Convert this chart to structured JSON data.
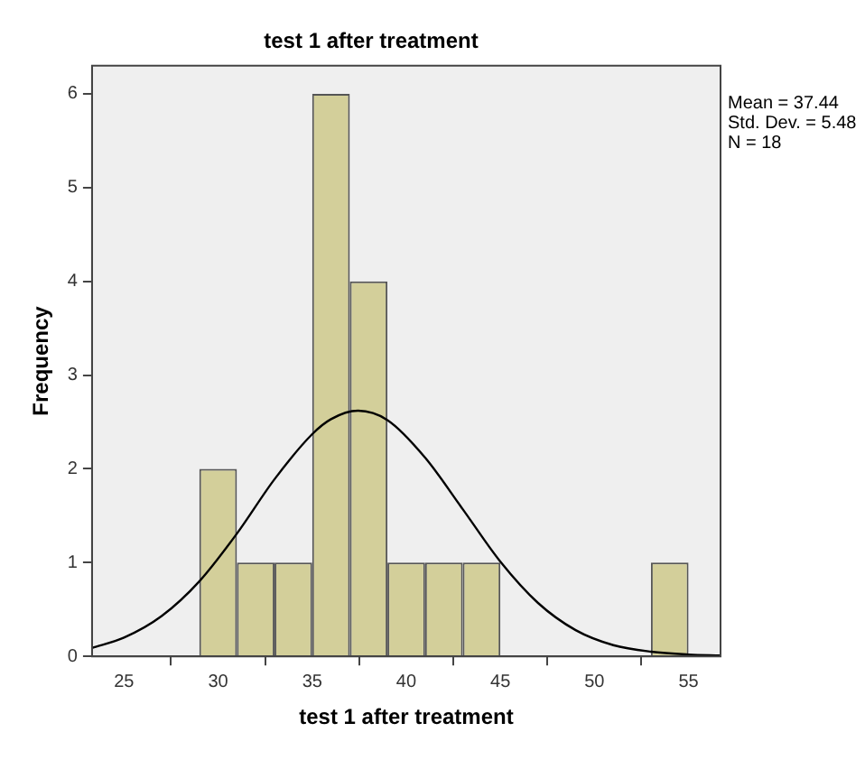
{
  "chart_data": {
    "type": "histogram",
    "title": "test 1 after treatment",
    "xlabel": "test 1 after treatment",
    "ylabel": "Frequency",
    "bins": [
      29,
      31,
      33,
      35,
      37,
      39,
      41,
      43,
      45,
      47,
      49,
      51,
      53,
      55
    ],
    "values": [
      2,
      1,
      1,
      6,
      4,
      1,
      1,
      1,
      0,
      0,
      0,
      0,
      1
    ],
    "color": "#d3cf9a",
    "series": [
      {
        "type": "line",
        "color": "#000000",
        "x": [
          23.3,
          25,
          27,
          29,
          31,
          33,
          35,
          36,
          37.44,
          39,
          41,
          43,
          45,
          47,
          49,
          51,
          53,
          55,
          56.7
        ],
        "values": [
          0.09,
          0.2,
          0.43,
          0.8,
          1.31,
          1.89,
          2.37,
          2.53,
          2.62,
          2.52,
          2.12,
          1.57,
          1.01,
          0.57,
          0.28,
          0.12,
          0.05,
          0.02,
          0.01
        ]
      }
    ],
    "xlim": [
      23.3,
      56.7
    ],
    "xticks": [
      25,
      30,
      35,
      40,
      45,
      50,
      55
    ],
    "ylim": [
      0,
      6.3
    ],
    "yticks": [
      0,
      1,
      2,
      3,
      4,
      5,
      6
    ],
    "grid": false,
    "legend": false,
    "marker": "none",
    "line_style": "solid",
    "annotations": [
      "Mean = 37.44",
      "Std. Dev. = 5.48",
      "N = 18"
    ]
  }
}
